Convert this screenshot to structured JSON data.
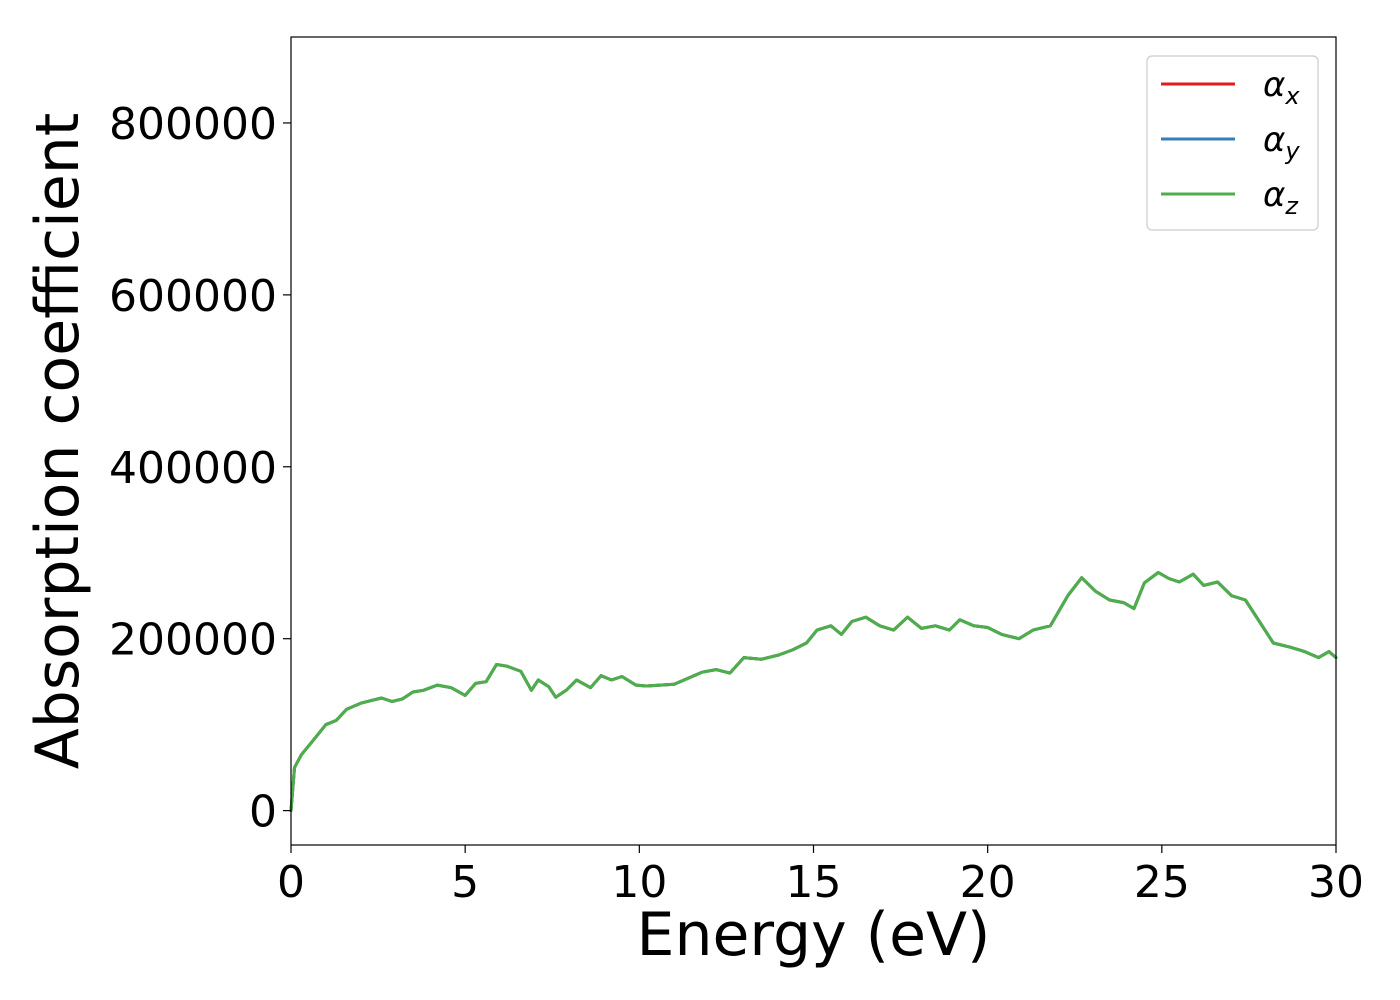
{
  "chart_data": {
    "type": "line",
    "title": "",
    "xlabel": "Energy (eV)",
    "ylabel": "Absorption coefficient",
    "xlim": [
      0,
      30
    ],
    "ylim": [
      -40000,
      900000
    ],
    "xticks": [
      0,
      5,
      10,
      15,
      20,
      25,
      30
    ],
    "xtick_labels": [
      "0",
      "5",
      "10",
      "15",
      "20",
      "25",
      "30"
    ],
    "yticks": [
      0,
      200000,
      400000,
      600000,
      800000
    ],
    "ytick_labels": [
      "0",
      "200000",
      "400000",
      "600000",
      "800000"
    ],
    "grid": false,
    "legend_position": "top-right",
    "series": [
      {
        "name": "α",
        "subscript": "x",
        "color": "#e41a1c",
        "x": [
          0,
          0.1,
          0.3,
          0.6,
          1.0,
          1.3,
          1.6,
          2.0,
          2.3,
          2.6,
          2.9,
          3.2,
          3.5,
          3.8,
          4.2,
          4.6,
          5.0,
          5.3,
          5.6,
          5.9,
          6.2,
          6.6,
          6.9,
          7.1,
          7.4,
          7.6,
          7.9,
          8.2,
          8.6,
          8.9,
          9.2,
          9.5,
          9.9,
          10.2,
          10.6,
          11.0,
          11.4,
          11.8,
          12.2,
          12.6,
          13.0,
          13.5,
          14.0,
          14.4,
          14.8,
          15.1,
          15.5,
          15.8,
          16.1,
          16.5,
          16.9,
          17.3,
          17.7,
          18.1,
          18.5,
          18.9,
          19.2,
          19.6,
          20.0,
          20.4,
          20.9,
          21.3,
          21.8,
          22.3,
          22.7,
          23.1,
          23.5,
          23.9,
          24.2,
          24.5,
          24.9,
          25.2,
          25.5,
          25.9,
          26.2,
          26.6,
          27.0,
          27.4,
          27.8,
          28.2,
          28.7,
          29.1,
          29.5,
          29.8,
          30.0
        ],
        "y": [
          0,
          50000,
          65000,
          80000,
          100000,
          105000,
          118000,
          125000,
          128000,
          131000,
          127000,
          130000,
          138000,
          140000,
          146000,
          143000,
          134000,
          148000,
          150000,
          170000,
          168000,
          162000,
          140000,
          152000,
          144000,
          132000,
          140000,
          152000,
          143000,
          157000,
          152000,
          156000,
          146000,
          145000,
          146000,
          147000,
          154000,
          161000,
          164000,
          160000,
          178000,
          176000,
          181000,
          187000,
          195000,
          210000,
          215000,
          205000,
          220000,
          225000,
          215000,
          210000,
          225000,
          212000,
          215000,
          210000,
          222000,
          215000,
          213000,
          205000,
          200000,
          210000,
          215000,
          250000,
          271000,
          255000,
          245000,
          242000,
          235000,
          265000,
          277000,
          270000,
          266000,
          275000,
          262000,
          266000,
          250000,
          245000,
          220000,
          195000,
          190000,
          185000,
          178000,
          185000,
          178000
        ]
      },
      {
        "name": "α",
        "subscript": "y",
        "color": "#377eb8",
        "x": [
          0,
          0.1,
          0.3,
          0.6,
          1.0,
          1.3,
          1.6,
          2.0,
          2.3,
          2.6,
          2.9,
          3.2,
          3.5,
          3.8,
          4.2,
          4.6,
          5.0,
          5.3,
          5.6,
          5.9,
          6.2,
          6.6,
          6.9,
          7.1,
          7.4,
          7.6,
          7.9,
          8.2,
          8.6,
          8.9,
          9.2,
          9.5,
          9.9,
          10.2,
          10.6,
          11.0,
          11.4,
          11.8,
          12.2,
          12.6,
          13.0,
          13.5,
          14.0,
          14.4,
          14.8,
          15.1,
          15.5,
          15.8,
          16.1,
          16.5,
          16.9,
          17.3,
          17.7,
          18.1,
          18.5,
          18.9,
          19.2,
          19.6,
          20.0,
          20.4,
          20.9,
          21.3,
          21.8,
          22.3,
          22.7,
          23.1,
          23.5,
          23.9,
          24.2,
          24.5,
          24.9,
          25.2,
          25.5,
          25.9,
          26.2,
          26.6,
          27.0,
          27.4,
          27.8,
          28.2,
          28.7,
          29.1,
          29.5,
          29.8,
          30.0
        ],
        "y": [
          0,
          50000,
          65000,
          80000,
          100000,
          105000,
          118000,
          125000,
          128000,
          131000,
          127000,
          130000,
          138000,
          140000,
          146000,
          143000,
          134000,
          148000,
          150000,
          170000,
          168000,
          162000,
          140000,
          152000,
          144000,
          132000,
          140000,
          152000,
          143000,
          157000,
          152000,
          156000,
          146000,
          145000,
          146000,
          147000,
          154000,
          161000,
          164000,
          160000,
          178000,
          176000,
          181000,
          187000,
          195000,
          210000,
          215000,
          205000,
          220000,
          225000,
          215000,
          210000,
          225000,
          212000,
          215000,
          210000,
          222000,
          215000,
          213000,
          205000,
          200000,
          210000,
          215000,
          250000,
          271000,
          255000,
          245000,
          242000,
          235000,
          265000,
          277000,
          270000,
          266000,
          275000,
          262000,
          266000,
          250000,
          245000,
          220000,
          195000,
          190000,
          185000,
          178000,
          185000,
          178000
        ]
      },
      {
        "name": "α",
        "subscript": "z",
        "color": "#4daf4a",
        "x": [
          0,
          0.1,
          0.3,
          0.6,
          1.0,
          1.3,
          1.6,
          2.0,
          2.3,
          2.6,
          2.9,
          3.2,
          3.5,
          3.8,
          4.2,
          4.6,
          5.0,
          5.3,
          5.6,
          5.9,
          6.2,
          6.6,
          6.9,
          7.1,
          7.4,
          7.6,
          7.9,
          8.2,
          8.6,
          8.9,
          9.2,
          9.5,
          9.9,
          10.2,
          10.6,
          11.0,
          11.4,
          11.8,
          12.2,
          12.6,
          13.0,
          13.5,
          14.0,
          14.4,
          14.8,
          15.1,
          15.5,
          15.8,
          16.1,
          16.5,
          16.9,
          17.3,
          17.7,
          18.1,
          18.5,
          18.9,
          19.2,
          19.6,
          20.0,
          20.4,
          20.9,
          21.3,
          21.8,
          22.3,
          22.7,
          23.1,
          23.5,
          23.9,
          24.2,
          24.5,
          24.9,
          25.2,
          25.5,
          25.9,
          26.2,
          26.6,
          27.0,
          27.4,
          27.8,
          28.2,
          28.7,
          29.1,
          29.5,
          29.8,
          30.0
        ],
        "y": [
          0,
          50000,
          65000,
          80000,
          100000,
          105000,
          118000,
          125000,
          128000,
          131000,
          127000,
          130000,
          138000,
          140000,
          146000,
          143000,
          134000,
          148000,
          150000,
          170000,
          168000,
          162000,
          140000,
          152000,
          144000,
          132000,
          140000,
          152000,
          143000,
          157000,
          152000,
          156000,
          146000,
          145000,
          146000,
          147000,
          154000,
          161000,
          164000,
          160000,
          178000,
          176000,
          181000,
          187000,
          195000,
          210000,
          215000,
          205000,
          220000,
          225000,
          215000,
          210000,
          225000,
          212000,
          215000,
          210000,
          222000,
          215000,
          213000,
          205000,
          200000,
          210000,
          215000,
          250000,
          271000,
          255000,
          245000,
          242000,
          235000,
          265000,
          277000,
          270000,
          266000,
          275000,
          262000,
          266000,
          250000,
          245000,
          220000,
          195000,
          190000,
          185000,
          178000,
          185000,
          178000
        ]
      }
    ]
  }
}
